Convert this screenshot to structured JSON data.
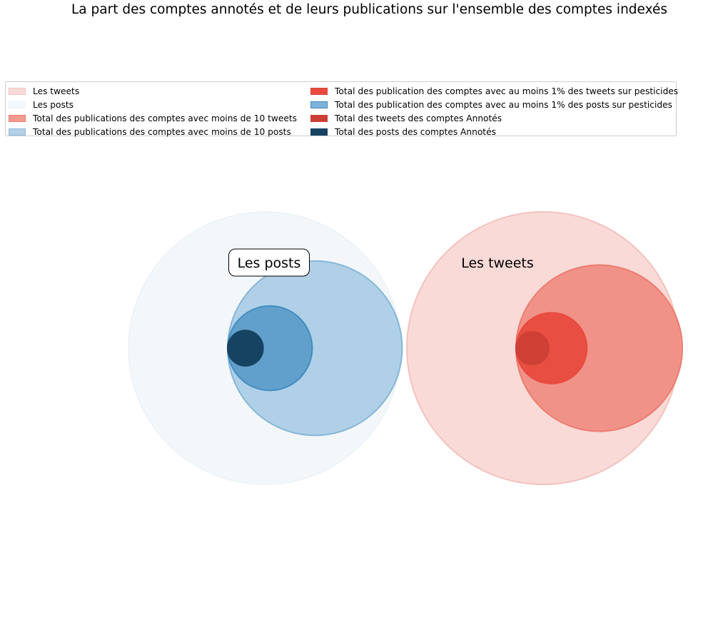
{
  "chart_data": {
    "type": "nested-circles",
    "title": "La part des comptes annotés et de leurs publications sur l'ensemble des comptes indexés",
    "groups": [
      {
        "label": "Les posts",
        "label_boxed": true,
        "circles": [
          {
            "legend": "Les posts",
            "relative_radius": 1.0,
            "color": "#dfe8f1",
            "stroke": "#dfe8f1",
            "opacity": 0.35
          },
          {
            "legend": "Total des publications des comptes avec moins de 10 posts",
            "relative_radius": 0.64,
            "color": "#9ec5e2",
            "stroke": "#7fb1d6",
            "opacity": 0.8
          },
          {
            "legend": "Total des publication des comptes avec au moins 1% des posts sur pesticides",
            "relative_radius": 0.31,
            "color": "#4f94c6",
            "stroke": "#3d88c0",
            "opacity": 0.8
          },
          {
            "legend": "Total des posts des comptes Annotés",
            "relative_radius": 0.13,
            "color": "#174363",
            "stroke": "#174363",
            "opacity": 1.0
          }
        ]
      },
      {
        "label": "Les tweets",
        "label_boxed": false,
        "circles": [
          {
            "legend": "Les tweets",
            "relative_radius": 1.0,
            "color": "#f9dad7",
            "stroke": "#f4c2bd",
            "opacity": 1.0
          },
          {
            "legend": "Total des publications des comptes avec moins de 10 tweets",
            "relative_radius": 0.61,
            "color": "#ef8a7f",
            "stroke": "#ec7c70",
            "opacity": 0.9
          },
          {
            "legend": "Total des publication des comptes avec au moins 1% des tweets sur pesticides",
            "relative_radius": 0.26,
            "color": "#e84b3e",
            "stroke": "#e84b3e",
            "opacity": 0.95
          },
          {
            "legend": "Total des tweets des comptes Annotés",
            "relative_radius": 0.12,
            "color": "#cc3f34",
            "stroke": "#cc3f34",
            "opacity": 0.95
          }
        ]
      }
    ],
    "legend": {
      "placement": "top",
      "columns": [
        [
          {
            "label": "Les tweets",
            "color": "#f9dad7",
            "border": "#f4c2bd"
          },
          {
            "label": "Les posts",
            "color": "#f4f7fb",
            "border": "#eef3f8"
          },
          {
            "label": "Total des publications des comptes avec moins de 10 tweets",
            "color": "#f19a90",
            "border": "#ec7c70"
          },
          {
            "label": "Total des publications des comptes avec moins de 10 posts",
            "color": "#b3d0e7",
            "border": "#8fbcdc"
          }
        ],
        [
          {
            "label": "Total des publication des comptes avec au moins 1% des tweets sur pesticides",
            "color": "#e84b3e",
            "border": "#d84336"
          },
          {
            "label": "Total des publication des comptes avec au moins 1% des posts sur pesticides",
            "color": "#7eb3d9",
            "border": "#3d88c0"
          },
          {
            "label": "Total des tweets des comptes Annotés",
            "color": "#cc3f34",
            "border": "#cc3f34"
          },
          {
            "label": "Total des posts des comptes Annotés",
            "color": "#174363",
            "border": "#174363"
          }
        ]
      ]
    }
  }
}
